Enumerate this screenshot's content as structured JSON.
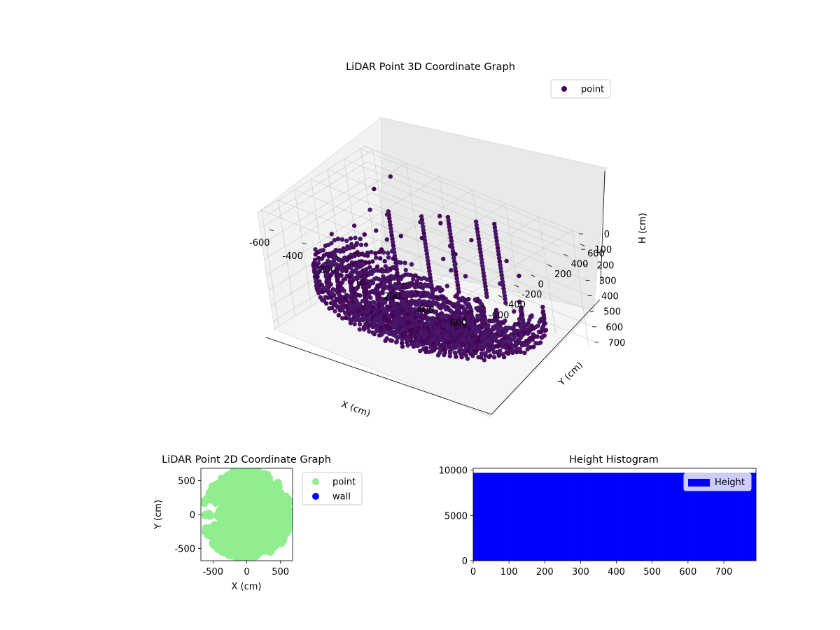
{
  "chart_data": [
    {
      "type": "scatter",
      "projection": "3d",
      "title": "LiDAR Point 3D Coordinate Graph",
      "xlabel": "X (cm)",
      "ylabel": "Y (cm)",
      "zlabel": "H (cm)",
      "xlim": [
        -650,
        650
      ],
      "ylim": [
        -650,
        650
      ],
      "zlim": [
        0,
        750
      ],
      "z_inverted": true,
      "xticks": [
        -600,
        -400,
        -200,
        0,
        200,
        400,
        600
      ],
      "yticks": [
        -600,
        -400,
        -200,
        0,
        200,
        400,
        600
      ],
      "zticks": [
        0,
        100,
        200,
        300,
        400,
        500,
        600,
        700
      ],
      "legend": {
        "entries": [
          {
            "label": "point",
            "color": "#440154"
          }
        ],
        "placement": "upper-right"
      },
      "grid": true,
      "color": "#440154"
    },
    {
      "type": "scatter",
      "title": "LiDAR Point 2D Coordinate Graph",
      "xlabel": "X (cm)",
      "ylabel": "Y (cm)",
      "xlim": [
        -680,
        680
      ],
      "ylim": [
        -680,
        680
      ],
      "xticks": [
        -500,
        0,
        500
      ],
      "yticks": [
        -500,
        0,
        500
      ],
      "series": [
        {
          "name": "point",
          "color": "#90ee90"
        },
        {
          "name": "wall",
          "color": "#0000ff"
        }
      ],
      "legend": {
        "placement": "outside-right"
      }
    },
    {
      "type": "bar",
      "title": "Height Histogram",
      "xlim": [
        0,
        790
      ],
      "ylim": [
        0,
        10200
      ],
      "xticks": [
        0,
        100,
        200,
        300,
        400,
        500,
        600,
        700
      ],
      "yticks": [
        0,
        5000,
        10000
      ],
      "bins": {
        "start": 0,
        "end": 790,
        "count": 79
      },
      "bin_value": 9700,
      "series": [
        {
          "name": "Height",
          "color": "#0000ff"
        }
      ],
      "legend": {
        "placement": "upper-right"
      }
    }
  ]
}
